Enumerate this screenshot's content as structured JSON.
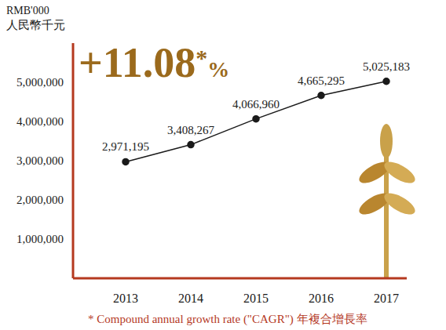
{
  "chart_data": {
    "type": "line",
    "unit_label": "RMB'000",
    "unit_label_zh": "人民幣千元",
    "annotation": {
      "text": "+11.08",
      "mark": "*",
      "unit": "%"
    },
    "footnote": "* Compound annual growth rate (\"CAGR\") 年複合增長率",
    "categories": [
      "2013",
      "2014",
      "2015",
      "2016",
      "2017"
    ],
    "values": [
      2971195,
      3408267,
      4066960,
      4665295,
      5025183
    ],
    "value_labels": [
      "2,971,195",
      "3,408,267",
      "4,066,960",
      "4,665,295",
      "5,025,183"
    ],
    "ylim": [
      0,
      6000000
    ],
    "yticks": [
      {
        "value": 1000000,
        "label": "1,000,000"
      },
      {
        "value": 2000000,
        "label": "2,000,000"
      },
      {
        "value": 3000000,
        "label": "3,000,000"
      },
      {
        "value": 4000000,
        "label": "4,000,000"
      },
      {
        "value": 5000000,
        "label": "5,000,000"
      }
    ],
    "color": "#1a1a1a",
    "marker": "circle",
    "data_labels": true,
    "grid": false
  }
}
